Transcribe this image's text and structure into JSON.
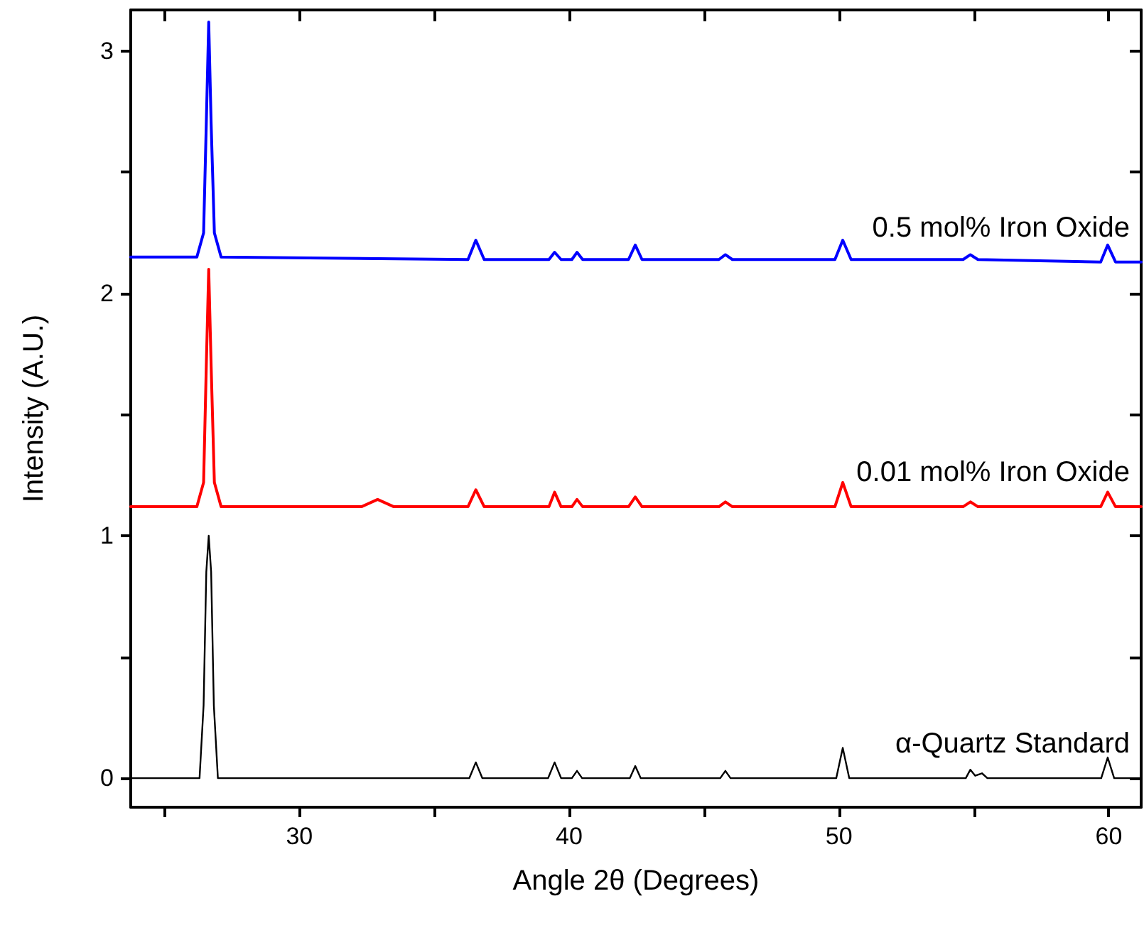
{
  "chart_data": {
    "type": "line",
    "xlabel": "Angle 2θ (Degrees)",
    "ylabel": "Intensity (A.U.)",
    "xlim": [
      23.75,
      61.2
    ],
    "ylim": [
      -0.12,
      3.17
    ],
    "xticks": [
      {
        "value": 25,
        "label": null
      },
      30,
      {
        "value": 35,
        "label": null
      },
      40,
      {
        "value": 45,
        "label": null
      },
      50,
      {
        "value": 55,
        "label": null
      },
      60
    ],
    "yticks": [
      0,
      {
        "value": 0.5,
        "label": null
      },
      1,
      {
        "value": 1.5,
        "label": null
      },
      2,
      {
        "value": 2.5,
        "label": null
      },
      3
    ],
    "grid": false,
    "legend": false,
    "marker": "none",
    "line_style": "solid",
    "series": [
      {
        "name": "0.5 mol% Iron Oxide",
        "color": "#0000ff",
        "x": [
          23.75,
          26.2,
          26.45,
          26.55,
          26.64,
          26.73,
          26.85,
          27.1,
          36.25,
          36.54,
          36.85,
          39.25,
          39.46,
          39.7,
          40.1,
          40.29,
          40.5,
          42.2,
          42.45,
          42.7,
          45.55,
          45.79,
          46.05,
          49.85,
          50.14,
          50.45,
          54.6,
          54.87,
          55.15,
          59.7,
          59.96,
          60.25,
          61.2
        ],
        "values": [
          2.15,
          2.15,
          2.25,
          2.7,
          3.12,
          2.7,
          2.25,
          2.15,
          2.14,
          2.22,
          2.14,
          2.14,
          2.17,
          2.14,
          2.14,
          2.17,
          2.14,
          2.14,
          2.2,
          2.14,
          2.14,
          2.16,
          2.14,
          2.14,
          2.22,
          2.14,
          2.14,
          2.16,
          2.14,
          2.13,
          2.2,
          2.13,
          2.13
        ]
      },
      {
        "name": "0.01 mol% Iron Oxide",
        "color": "#ff0000",
        "x": [
          23.75,
          26.2,
          26.45,
          26.55,
          26.64,
          26.73,
          26.85,
          27.1,
          32.3,
          32.9,
          33.5,
          36.25,
          36.54,
          36.85,
          39.25,
          39.46,
          39.7,
          40.1,
          40.29,
          40.5,
          42.2,
          42.45,
          42.7,
          45.55,
          45.79,
          46.05,
          49.85,
          50.14,
          50.45,
          54.6,
          54.87,
          55.15,
          59.7,
          59.96,
          60.25,
          61.2
        ],
        "values": [
          1.12,
          1.12,
          1.22,
          1.7,
          2.1,
          1.7,
          1.22,
          1.12,
          1.12,
          1.15,
          1.12,
          1.12,
          1.19,
          1.12,
          1.12,
          1.18,
          1.12,
          1.12,
          1.15,
          1.12,
          1.12,
          1.16,
          1.12,
          1.12,
          1.14,
          1.12,
          1.12,
          1.22,
          1.12,
          1.12,
          1.14,
          1.12,
          1.12,
          1.18,
          1.12,
          1.12
        ]
      },
      {
        "name": "α-Quartz Standard",
        "color": "#000000",
        "x": [
          23.75,
          26.3,
          26.45,
          26.55,
          26.64,
          26.73,
          26.83,
          26.98,
          36.3,
          36.54,
          36.78,
          39.22,
          39.46,
          39.7,
          40.1,
          40.29,
          40.48,
          42.25,
          42.45,
          42.65,
          45.6,
          45.79,
          45.98,
          49.9,
          50.14,
          50.38,
          54.7,
          54.87,
          55.05,
          55.3,
          55.5,
          59.72,
          59.96,
          60.2,
          61.2
        ],
        "values": [
          0,
          0,
          0.3,
          0.85,
          1.0,
          0.85,
          0.3,
          0,
          0,
          0.065,
          0,
          0,
          0.065,
          0,
          0,
          0.03,
          0,
          0,
          0.05,
          0,
          0,
          0.03,
          0,
          0,
          0.125,
          0,
          0,
          0.035,
          0.01,
          0.02,
          0,
          0,
          0.085,
          0,
          0
        ]
      }
    ]
  }
}
